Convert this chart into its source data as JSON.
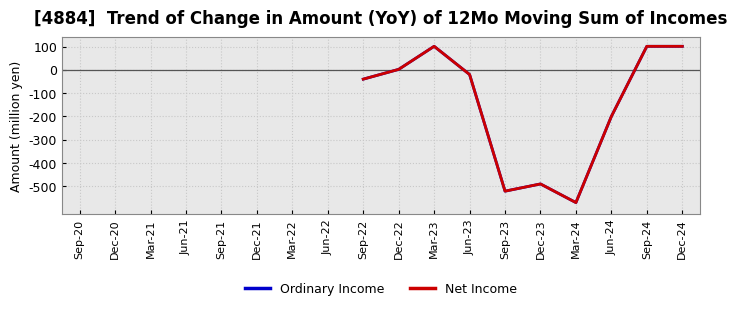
{
  "title": "[4884]  Trend of Change in Amount (YoY) of 12Mo Moving Sum of Incomes",
  "ylabel": "Amount (million yen)",
  "ylim": [
    -620,
    140
  ],
  "yticks": [
    100,
    0,
    -100,
    -200,
    -300,
    -400,
    -500
  ],
  "background_color": "#ffffff",
  "plot_background_color": "#e8e8e8",
  "grid_color": "#c8c8c8",
  "grid_style": "dotted",
  "ordinary_income_color": "#0000cc",
  "net_income_color": "#cc0000",
  "ordinary_income_label": "Ordinary Income",
  "net_income_label": "Net Income",
  "x_labels": [
    "Sep-20",
    "Dec-20",
    "Mar-21",
    "Jun-21",
    "Sep-21",
    "Dec-21",
    "Mar-22",
    "Jun-22",
    "Sep-22",
    "Dec-22",
    "Mar-23",
    "Jun-23",
    "Sep-23",
    "Dec-23",
    "Mar-24",
    "Jun-24",
    "Sep-24",
    "Dec-24"
  ],
  "net_income_x": [
    "Sep-22",
    "Dec-22",
    "Mar-23",
    "Jun-23",
    "Sep-23",
    "Dec-23",
    "Mar-24",
    "Jun-24",
    "Sep-24",
    "Dec-24"
  ],
  "net_income_y": [
    -40,
    2,
    101,
    -20,
    -521,
    -490,
    -570,
    -200,
    101,
    101
  ],
  "ordinary_income_x": [
    "Sep-22",
    "Dec-22",
    "Mar-23",
    "Jun-23",
    "Sep-23",
    "Dec-23",
    "Mar-24",
    "Jun-24",
    "Sep-24",
    "Dec-24"
  ],
  "ordinary_income_y": [
    -40,
    2,
    101,
    -20,
    -521,
    -490,
    -570,
    -200,
    101,
    101
  ],
  "line_width": 2.0,
  "title_fontsize": 12,
  "axis_label_fontsize": 9,
  "tick_fontsize": 8,
  "legend_fontsize": 9
}
